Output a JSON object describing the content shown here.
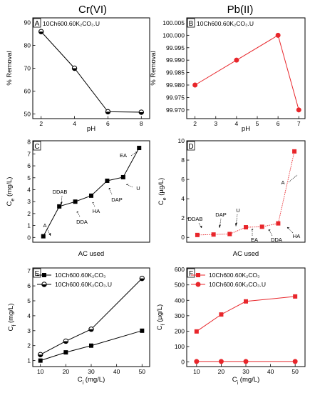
{
  "figure": {
    "column_titles": [
      "Cr(VI)",
      "Pb(II)"
    ]
  },
  "chart_data": [
    {
      "id": "A",
      "type": "line",
      "panel_label": "A",
      "note": "10Ch600.60K₂CO₃.U",
      "xlabel": "pH",
      "ylabel": "% Removal",
      "x": [
        2,
        4,
        6,
        8
      ],
      "series": [
        {
          "values": [
            86,
            70,
            51,
            50.8
          ]
        }
      ],
      "xlim": [
        1.5,
        8.5
      ],
      "ylim": [
        48,
        92
      ],
      "xticks": [
        2,
        4,
        6,
        8
      ],
      "yticks": [
        50,
        60,
        70,
        80,
        90
      ],
      "ytick_labels": [
        "50",
        "60",
        "70",
        "80",
        "90"
      ],
      "color": "#000000",
      "marker": "circle-half"
    },
    {
      "id": "B",
      "type": "line",
      "panel_label": "B",
      "note": "10Ch600.60K₂CO₃.U",
      "xlabel": "pH",
      "ylabel": "% Removal",
      "x": [
        2,
        4,
        6,
        7
      ],
      "series": [
        {
          "values": [
            99.98,
            99.99,
            100.0,
            99.97
          ]
        }
      ],
      "xlim": [
        1.6,
        7.3
      ],
      "ylim": [
        99.9665,
        100.007
      ],
      "xticks": [
        2,
        3,
        4,
        5,
        6,
        7
      ],
      "yticks": [
        99.97,
        99.975,
        99.98,
        99.985,
        99.99,
        99.995,
        100.0,
        100.005
      ],
      "ytick_labels": [
        "99.970",
        "99.975",
        "99.980",
        "99.985",
        "99.990",
        "99.995",
        "100.000",
        "100.005"
      ],
      "color": "#e8262b",
      "marker": "circle"
    },
    {
      "id": "C",
      "type": "line",
      "panel_label": "C",
      "xlabel": "AC used",
      "ylabel": "C_e (mg/L)",
      "ylabel_main": "C",
      "ylabel_sub": "e",
      "ylabel_rest": " (mg/L)",
      "categories": [
        "A",
        "DDAB",
        "DDA",
        "HA",
        "DAP",
        "U",
        "EA"
      ],
      "series": [
        {
          "values": [
            0.1,
            2.6,
            3.0,
            3.5,
            4.75,
            5.05,
            7.5
          ]
        }
      ],
      "ylim": [
        -0.4,
        8.1
      ],
      "yticks": [
        0,
        1,
        2,
        3,
        4,
        5,
        6,
        7,
        8
      ],
      "ytick_labels": [
        "0",
        "1",
        "2",
        "3",
        "4",
        "5",
        "6",
        "7",
        "8"
      ],
      "color": "#000000",
      "marker": "square"
    },
    {
      "id": "D",
      "type": "line",
      "panel_label": "D",
      "xlabel": "AC used",
      "ylabel": "C_e (µg/L)",
      "ylabel_main": "C",
      "ylabel_sub": "e",
      "ylabel_rest": " (µg/L)",
      "categories": [
        "DDAB",
        "DAP",
        "U",
        "EA",
        "DDA",
        "HA",
        "A"
      ],
      "series": [
        {
          "values": [
            0.25,
            0.3,
            0.35,
            1.05,
            1.1,
            1.45,
            8.9
          ]
        }
      ],
      "ylim": [
        -0.5,
        10
      ],
      "yticks": [
        0,
        2,
        4,
        6,
        8,
        10
      ],
      "ytick_labels": [
        "0",
        "2",
        "4",
        "6",
        "8",
        "10"
      ],
      "color": "#e8262b",
      "marker": "square"
    },
    {
      "id": "E",
      "type": "line",
      "panel_label": "E",
      "xlabel": "C_i (mg/L)",
      "xlabel_main": "C",
      "xlabel_sub": "i",
      "xlabel_rest": " (mg/L)",
      "ylabel": "C_f (mg/L)",
      "ylabel_main": "C",
      "ylabel_sub": "f",
      "ylabel_rest": " (mg/L)",
      "x": [
        10,
        20,
        30,
        50
      ],
      "series": [
        {
          "name": "10Ch600.60K₂CO₃",
          "marker": "square",
          "values": [
            1.0,
            1.55,
            2.0,
            3.0
          ]
        },
        {
          "name": "10Ch600.60K₂CO₃.U",
          "marker": "circle-half",
          "values": [
            1.4,
            2.3,
            3.1,
            6.5
          ]
        }
      ],
      "xlim": [
        7,
        53
      ],
      "ylim": [
        0.6,
        7.2
      ],
      "xticks": [
        10,
        20,
        30,
        40,
        50
      ],
      "yticks": [
        1,
        2,
        3,
        4,
        5,
        6,
        7
      ],
      "ytick_labels": [
        "1",
        "2",
        "3",
        "4",
        "5",
        "6",
        "7"
      ],
      "color": "#000000",
      "legend": "top-left"
    },
    {
      "id": "F",
      "type": "line",
      "panel_label": "F",
      "xlabel": "C_i (mg/L)",
      "xlabel_main": "C",
      "xlabel_sub": "i",
      "xlabel_rest": " (mg/L)",
      "ylabel": "C_f (µg/L)",
      "ylabel_main": "C",
      "ylabel_sub": "f",
      "ylabel_rest": " (µg/L)",
      "x": [
        10,
        20,
        30,
        50
      ],
      "series": [
        {
          "name": "10Ch600.60K₂CO₃",
          "marker": "square",
          "values": [
            198,
            308,
            393,
            425
          ]
        },
        {
          "name": "10Ch600.60K₂CO₃.U",
          "marker": "circle",
          "values": [
            3,
            3,
            3,
            3
          ]
        }
      ],
      "xlim": [
        6,
        54
      ],
      "ylim": [
        -30,
        610
      ],
      "xticks": [
        10,
        20,
        30,
        40,
        50
      ],
      "yticks": [
        0,
        100,
        200,
        300,
        400,
        500,
        600
      ],
      "ytick_labels": [
        "0",
        "100",
        "200",
        "300",
        "400",
        "500",
        "600"
      ],
      "color": "#e8262b",
      "legend": "top-left"
    }
  ]
}
